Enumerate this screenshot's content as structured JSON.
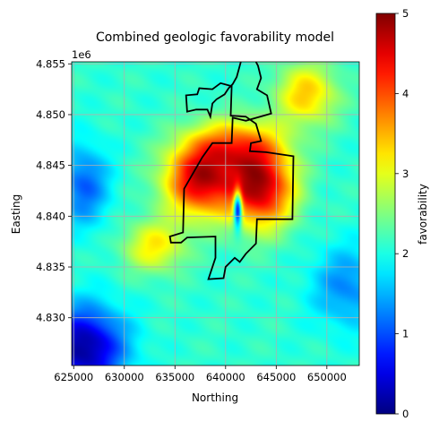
{
  "chart_data": {
    "type": "heatmap",
    "title": "Combined geologic favorability model",
    "xlabel": "Northing",
    "ylabel": "Easting",
    "y_offset_label": "1e6",
    "colorbar_label": "favorability",
    "colormap": "jet",
    "xlim": [
      624800,
      653200
    ],
    "ylim": [
      4825300,
      4855200
    ],
    "x_ticks": [
      625000,
      630000,
      635000,
      640000,
      645000,
      650000
    ],
    "x_tick_labels": [
      "625000",
      "630000",
      "635000",
      "640000",
      "645000",
      "650000"
    ],
    "y_ticks": [
      4830000,
      4835000,
      4840000,
      4845000,
      4850000,
      4855000
    ],
    "y_tick_labels": [
      "4.830",
      "4.835",
      "4.840",
      "4.845",
      "4.850",
      "4.855"
    ],
    "clim": [
      0,
      5
    ],
    "colorbar_ticks": [
      0,
      1,
      2,
      3,
      4,
      5
    ],
    "colorbar_tick_labels": [
      "0",
      "1",
      "2",
      "3",
      "4",
      "5"
    ],
    "grid": true,
    "favorability_field": {
      "background": 2.1,
      "hotspots": [
        {
          "x": 637500,
          "y": 4843500,
          "peak": 4.6,
          "sx": 3500,
          "sy": 3500
        },
        {
          "x": 643500,
          "y": 4842800,
          "peak": 4.7,
          "sx": 3200,
          "sy": 3800
        },
        {
          "x": 641000,
          "y": 4847000,
          "peak": 3.6,
          "sx": 4500,
          "sy": 2500
        },
        {
          "x": 648000,
          "y": 4852000,
          "peak": 3.4,
          "sx": 3000,
          "sy": 3000
        },
        {
          "x": 633000,
          "y": 4837000,
          "peak": 3.2,
          "sx": 3000,
          "sy": 2500
        }
      ],
      "lows": [
        {
          "x": 626000,
          "y": 4827000,
          "depth": 2.0,
          "sx": 4000,
          "sy": 4000
        },
        {
          "x": 626000,
          "y": 4843000,
          "depth": 1.0,
          "sx": 2500,
          "sy": 4000
        },
        {
          "x": 652000,
          "y": 4833000,
          "depth": 0.8,
          "sx": 3500,
          "sy": 4000
        },
        {
          "x": 641200,
          "y": 4840800,
          "depth": 2.8,
          "sx": 400,
          "sy": 1800
        }
      ]
    },
    "boundary_polygon": [
      [
        643000,
        4855200
      ],
      [
        643200,
        4854800
      ],
      [
        643500,
        4853600
      ],
      [
        643100,
        4852500
      ],
      [
        644100,
        4851900
      ],
      [
        644500,
        4850100
      ],
      [
        642000,
        4849400
      ],
      [
        640700,
        4849700
      ],
      [
        640600,
        4847200
      ],
      [
        638700,
        4847200
      ],
      [
        637700,
        4845800
      ],
      [
        635900,
        4842700
      ],
      [
        635800,
        4838400
      ],
      [
        634500,
        4838000
      ],
      [
        634600,
        4837400
      ],
      [
        635600,
        4837400
      ],
      [
        636200,
        4837900
      ],
      [
        639000,
        4838000
      ],
      [
        639000,
        4835900
      ],
      [
        638300,
        4833800
      ],
      [
        639800,
        4833900
      ],
      [
        640000,
        4835000
      ],
      [
        640900,
        4835900
      ],
      [
        641400,
        4835500
      ],
      [
        642000,
        4836300
      ],
      [
        643000,
        4837300
      ],
      [
        643100,
        4839700
      ],
      [
        646600,
        4839700
      ],
      [
        646700,
        4845900
      ],
      [
        644000,
        4846300
      ],
      [
        642400,
        4846400
      ],
      [
        642500,
        4847200
      ],
      [
        643500,
        4847400
      ],
      [
        643000,
        4849100
      ],
      [
        642000,
        4849800
      ],
      [
        640500,
        4849900
      ],
      [
        640600,
        4852800
      ],
      [
        639500,
        4853100
      ],
      [
        638700,
        4852500
      ],
      [
        637400,
        4852600
      ],
      [
        637200,
        4852000
      ],
      [
        636100,
        4851900
      ],
      [
        636200,
        4850300
      ],
      [
        637100,
        4850500
      ],
      [
        638200,
        4850500
      ],
      [
        638500,
        4849800
      ],
      [
        638700,
        4851100
      ],
      [
        639100,
        4851500
      ],
      [
        639900,
        4852000
      ],
      [
        640300,
        4852600
      ],
      [
        640700,
        4853000
      ],
      [
        641100,
        4853700
      ],
      [
        641500,
        4855200
      ]
    ]
  }
}
